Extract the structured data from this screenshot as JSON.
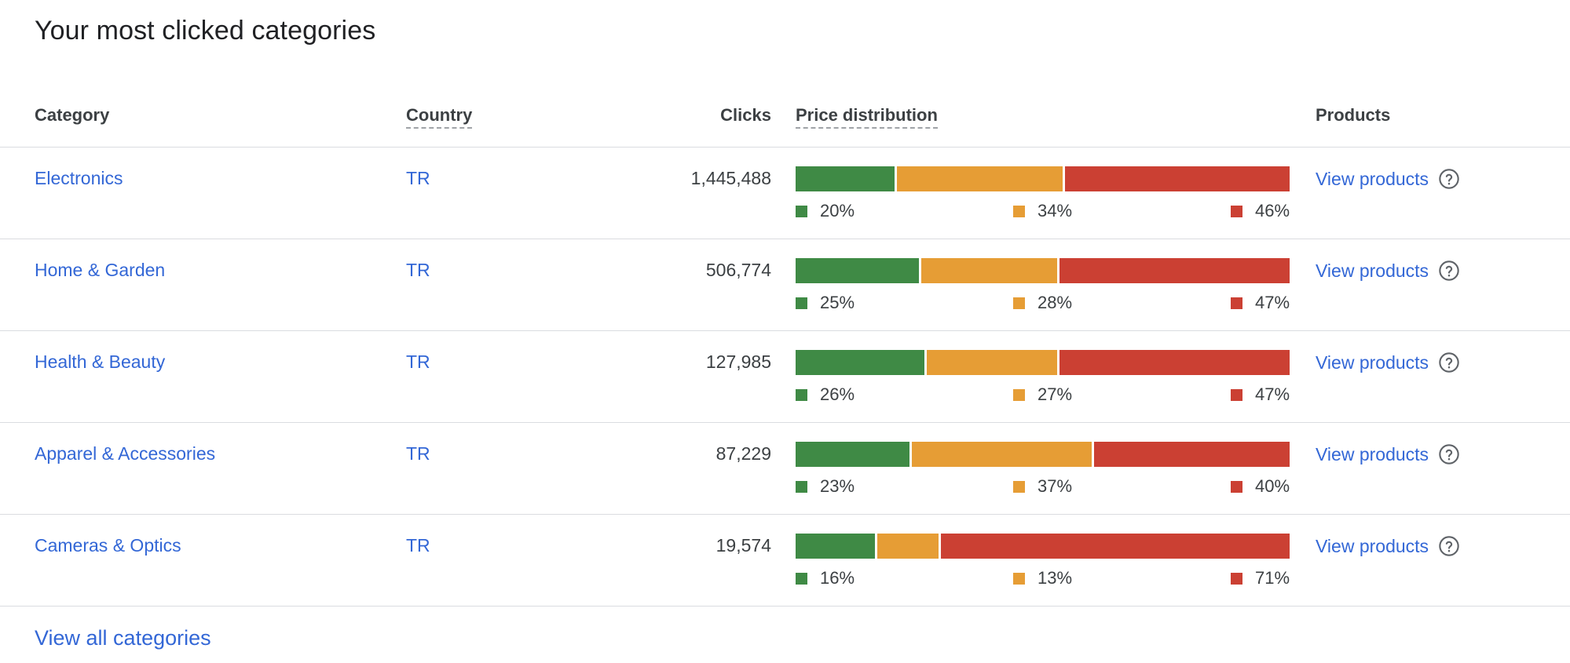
{
  "title": "Your most clicked categories",
  "columns": {
    "category": "Category",
    "country": "Country",
    "clicks": "Clicks",
    "price_distribution": "Price distribution",
    "products": "Products"
  },
  "colors": {
    "low": "#3f8a45",
    "mid": "#e69d35",
    "high": "#cb4033",
    "link": "#3367d6"
  },
  "rows": [
    {
      "category": "Electronics",
      "country": "TR",
      "clicks": "1,445,488",
      "low": "20%",
      "mid": "34%",
      "high": "46%",
      "products_link": "View products"
    },
    {
      "category": "Home & Garden",
      "country": "TR",
      "clicks": "506,774",
      "low": "25%",
      "mid": "28%",
      "high": "47%",
      "products_link": "View products"
    },
    {
      "category": "Health & Beauty",
      "country": "TR",
      "clicks": "127,985",
      "low": "26%",
      "mid": "27%",
      "high": "47%",
      "products_link": "View products"
    },
    {
      "category": "Apparel & Accessories",
      "country": "TR",
      "clicks": "87,229",
      "low": "23%",
      "mid": "37%",
      "high": "40%",
      "products_link": "View products"
    },
    {
      "category": "Cameras & Optics",
      "country": "TR",
      "clicks": "19,574",
      "low": "16%",
      "mid": "13%",
      "high": "71%",
      "products_link": "View products"
    }
  ],
  "icons": {
    "products_help": "help-circle-icon"
  },
  "footer": {
    "view_all": "View all categories"
  }
}
